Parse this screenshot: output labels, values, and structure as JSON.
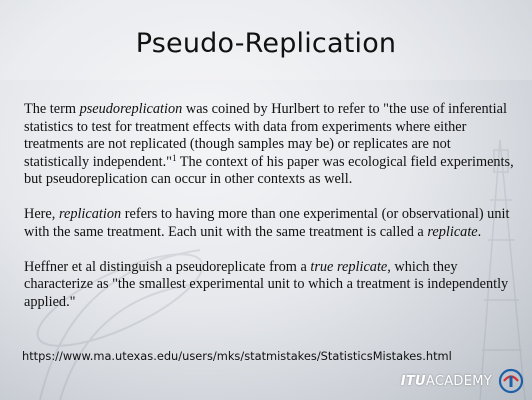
{
  "slide": {
    "title": "Pseudo-Replication",
    "paragraph1": {
      "part1": "The term ",
      "italic1": "pseudoreplication",
      "part2": " was coined by Hurlbert to refer to \"the use of inferential statistics to test for treatment effects with data from experiments where either treatments are not replicated (though samples may be) or replicates are not statistically independent.\"",
      "footnote": "1",
      "part3": " The context of his paper was ecological field experiments, but pseudoreplication can occur in other contexts as well."
    },
    "paragraph2": {
      "part1": "Here, ",
      "italic1": "replication",
      "part2": " refers to having more than one experimental (or observational) unit with the same treatment. Each unit with the same treatment is called a ",
      "italic2": "replicate",
      "part3": "."
    },
    "paragraph3": {
      "part1": "Heffner et al distinguish a pseudoreplicate from a ",
      "italic1": "true replicate",
      "part2": ", which they characterize as \"the smallest experimental unit to which a treatment is independently applied.\""
    },
    "source_url": "https://www.ma.utexas.edu/users/mks/statmistakes/StatisticsMistakes.html"
  },
  "footer": {
    "logo_itu": "ITU",
    "logo_academy": "ACADEMY",
    "logo_icon": "itu-globe-icon"
  },
  "colors": {
    "text": "#111111",
    "logo_blue": "#1f5fa8",
    "logo_red": "#d42e2e"
  }
}
